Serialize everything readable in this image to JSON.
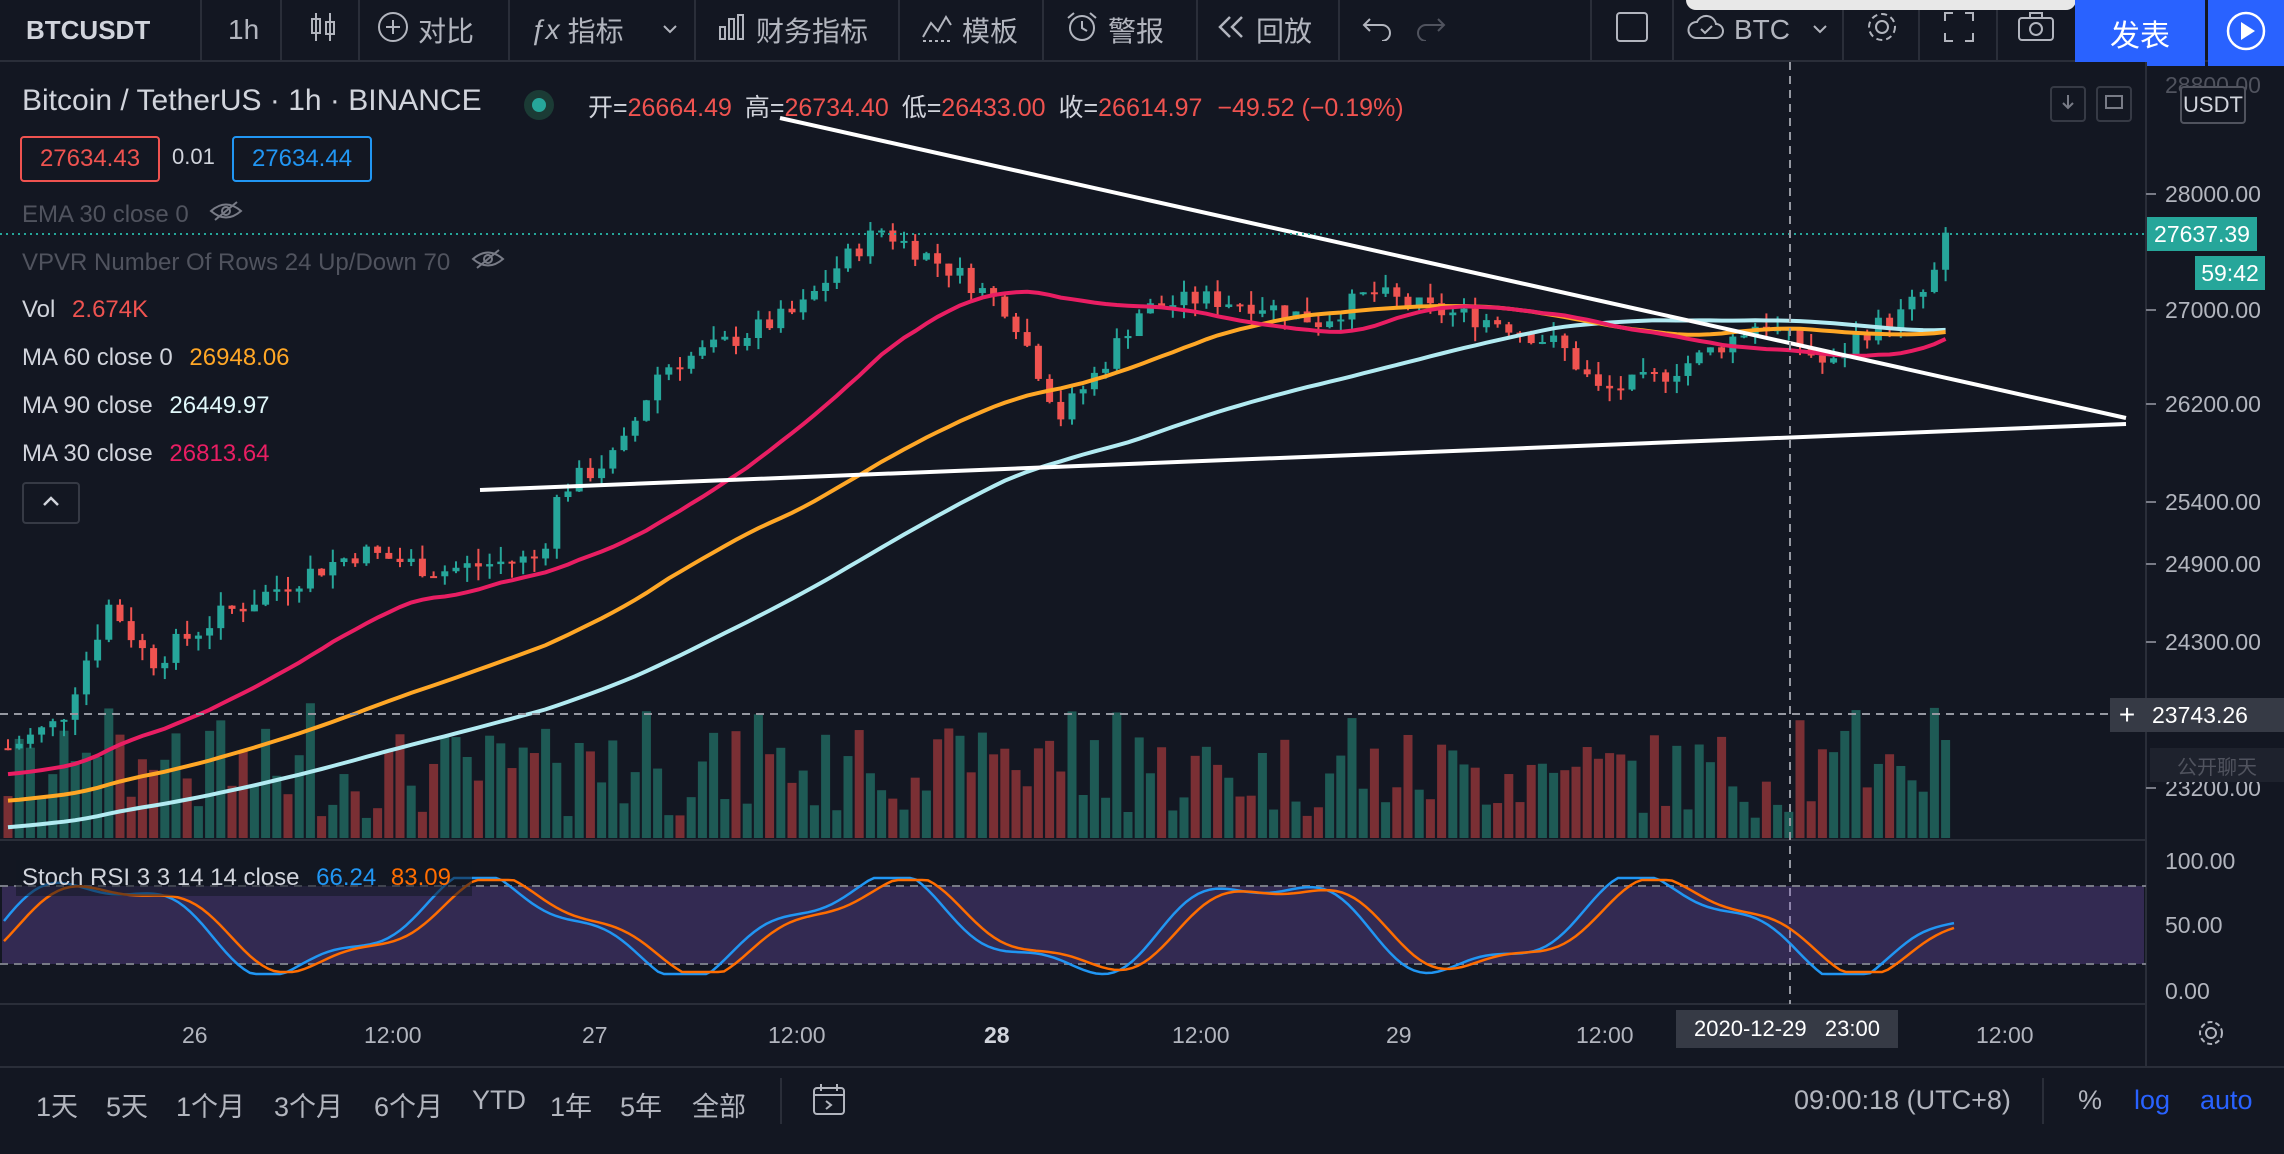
{
  "toolbar": {
    "symbol": "BTCUSDT",
    "interval": "1h",
    "compare": "对比",
    "indicators": "指标",
    "financials": "财务指标",
    "templates": "模板",
    "alert": "警报",
    "replay": "回放",
    "compare_symbol": "BTC",
    "publish": "发表"
  },
  "header": {
    "title": "Bitcoin / TetherUS · 1h · BINANCE",
    "open_label": "开=",
    "open": "26664.49",
    "high_label": "高=",
    "high": "26734.40",
    "low_label": "低=",
    "low": "26433.00",
    "close_label": "收=",
    "close": "26614.97",
    "change": "−49.52 (−0.19%)",
    "sell": "27634.43",
    "spread": "0.01",
    "buy": "27634.44"
  },
  "indicators": {
    "ema": "EMA 30 close 0",
    "vpvr": "VPVR Number Of Rows 24 Up/Down 70",
    "vol_label": "Vol",
    "vol_value": "2.674K",
    "ma60_label": "MA 60 close 0",
    "ma60_value": "26948.06",
    "ma90_label": "MA 90 close",
    "ma90_value": "26449.97",
    "ma30_label": "MA 30 close",
    "ma30_value": "26813.64",
    "stoch_label": "Stoch RSI 3 3 14 14 close",
    "stoch_k": "66.24",
    "stoch_d": "83.09"
  },
  "price_axis": {
    "currency": "USDT",
    "top_cut": "28800.00",
    "labels": [
      "28000.00",
      "27000.00",
      "26200.00",
      "25400.00",
      "24900.00",
      "24300.00",
      "23200.00"
    ],
    "last_price": "27637.39",
    "countdown": "59:42",
    "crosshair_price": "23743.26",
    "chat": "公开聊天"
  },
  "rsi_axis": {
    "labels": [
      "100.00",
      "50.00",
      "0.00"
    ]
  },
  "time_axis": {
    "labels": [
      "26",
      "12:00",
      "27",
      "12:00",
      "28",
      "12:00",
      "29",
      "12:00",
      "12:00"
    ],
    "crosshair": "2020-12-29   23:00"
  },
  "bottom": {
    "ranges": [
      "1天",
      "5天",
      "1个月",
      "3个月",
      "6个月",
      "YTD",
      "1年",
      "5年",
      "全部"
    ],
    "clock": "09:00:18 (UTC+8)",
    "percent": "%",
    "log": "log",
    "auto": "auto"
  },
  "colors": {
    "up": "#26a69a",
    "down": "#ef5350",
    "ma30": "#e91e63",
    "ma60": "#ffa726",
    "ma90": "#b2ebf2",
    "k": "#2196f3",
    "d": "#ff6d00"
  }
}
